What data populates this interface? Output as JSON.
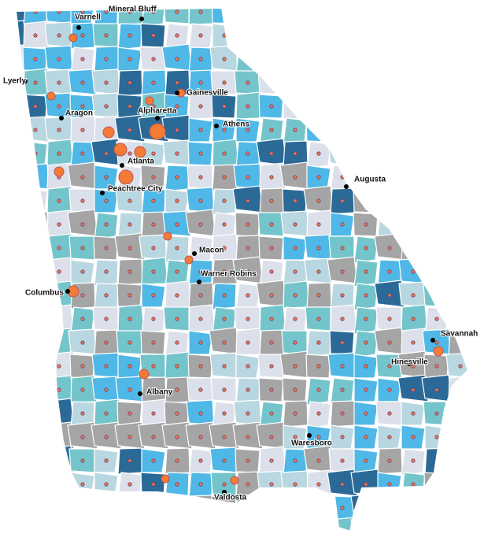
{
  "map": {
    "cities": [
      {
        "label": "Mineral Bluff"
      },
      {
        "label": "Varnell"
      },
      {
        "label": "Lyerly"
      },
      {
        "label": "Gainesville"
      },
      {
        "label": "Aragon"
      },
      {
        "label": "Alpharetta"
      },
      {
        "label": "Athens"
      },
      {
        "label": "Atlanta"
      },
      {
        "label": "Peachtree City"
      },
      {
        "label": "Augusta"
      },
      {
        "label": "Macon"
      },
      {
        "label": "Warner Robins"
      },
      {
        "label": "Columbus"
      },
      {
        "label": "Savannah"
      },
      {
        "label": "Hinesville"
      },
      {
        "label": "Albany"
      },
      {
        "label": "Waresboro"
      },
      {
        "label": "Valdosta"
      }
    ]
  }
}
